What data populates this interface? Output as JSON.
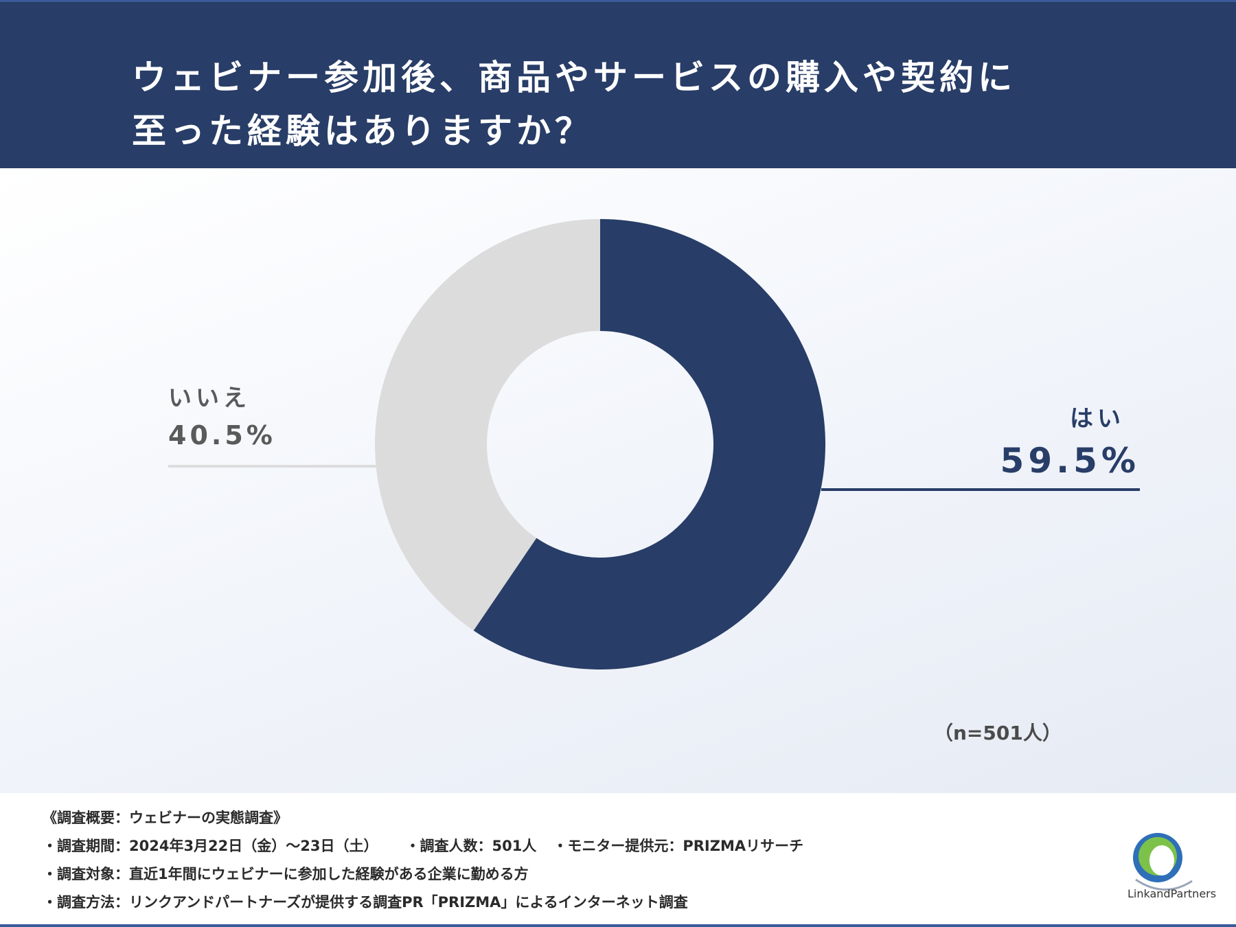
{
  "title": {
    "line1": "ウェビナー参加後、商品やサービスの購入や契約に",
    "line2": "至った経験はありますか？"
  },
  "chart_data": {
    "type": "pie",
    "donut": true,
    "title": "ウェビナー参加後、商品やサービスの購入や契約に至った経験はありますか？",
    "slices": [
      {
        "label": "はい",
        "value": 59.5,
        "display": "59.5%",
        "color": "#283d67"
      },
      {
        "label": "いいえ",
        "value": 40.5,
        "display": "40.5%",
        "color": "#dcdcdc"
      }
    ],
    "sample": "（n=501人）"
  },
  "footer": {
    "overview": "《調査概要：ウェビナーの実態調査》",
    "period": "・調査期間：2024年3月22日（金）～23日（土）",
    "count": "・調査人数：501人",
    "provider": "・モニター提供元：PRIZMAリサーチ",
    "target": "・調査対象：直近1年間にウェビナーに参加した経験がある企業に勤める方",
    "method": "・調査方法：リンクアンドパートナーズが提供する調査PR「PRIZMA」によるインターネット調査"
  },
  "logo": {
    "text": "LinkandPartners"
  },
  "colors": {
    "navy": "#283d67",
    "gray": "#dcdcdc"
  }
}
